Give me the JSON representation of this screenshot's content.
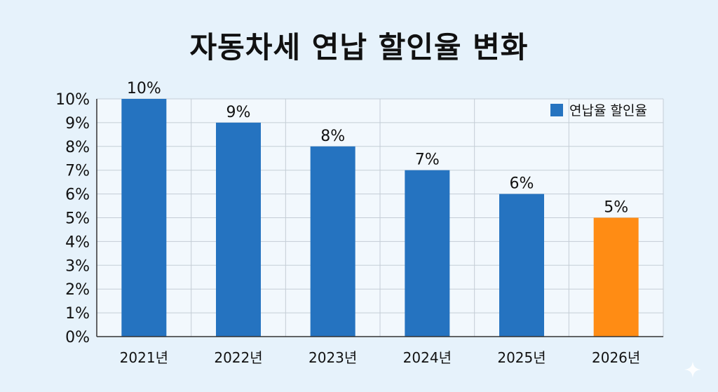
{
  "chart_data": {
    "type": "bar",
    "title": "자동차세 연납 할인율 변화",
    "categories": [
      "2021년",
      "2022년",
      "2023년",
      "2024년",
      "2025년",
      "2026년"
    ],
    "series": [
      {
        "name": "연납율 할인율",
        "values": [
          10,
          9,
          8,
          7,
          6,
          5
        ]
      }
    ],
    "data_labels": [
      "10%",
      "9%",
      "8%",
      "7%",
      "6%",
      "5%"
    ],
    "y_ticks": [
      "0%",
      "1%",
      "2%",
      "3%",
      "4%",
      "5%",
      "6%",
      "7%",
      "8%",
      "9%",
      "10%"
    ],
    "ylim": [
      0,
      10
    ],
    "grid": true,
    "legend_position": "top-right",
    "colors": {
      "bar": "#2573c0",
      "highlight": "#ff8c14",
      "grid": "#c4cdd6",
      "axis": "#333333"
    },
    "highlight_index": 5
  }
}
